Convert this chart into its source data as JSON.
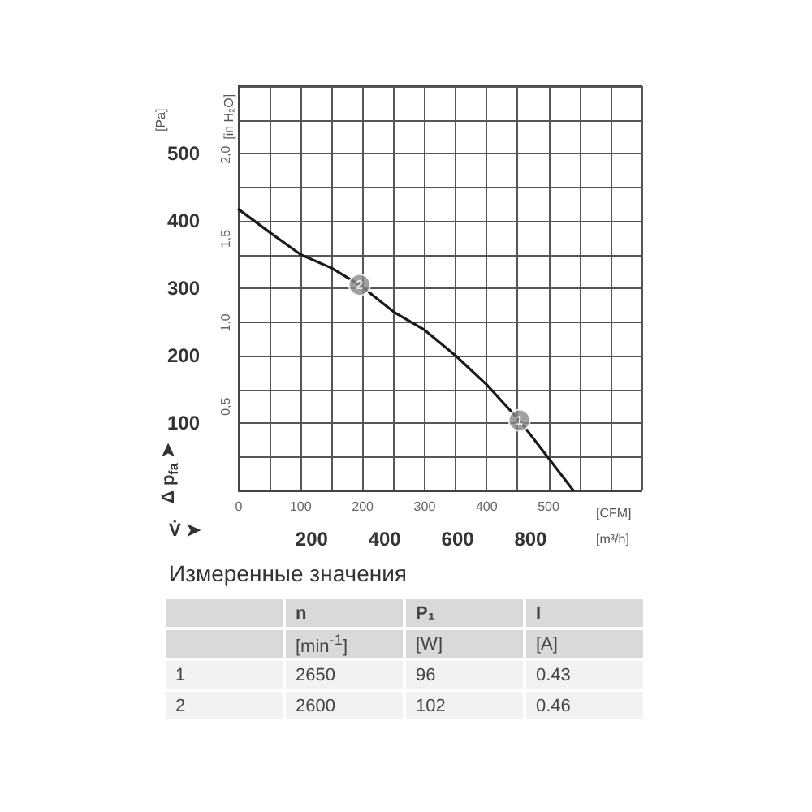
{
  "chart_data": [
    {
      "type": "line",
      "xlabel": "[CFM]",
      "ylabel": "[Pa]",
      "y2label": "[in H₂O]",
      "x2label": "[m³/h]",
      "annotations": [
        "Δ p$_{fa}$ ➤",
        "V̇ ➤",
        {
          "text": "1",
          "x": 453,
          "y": 104
        },
        {
          "text": "2",
          "x": 195,
          "y": 305
        }
      ],
      "series": [
        {
          "color": "#1a1a1a",
          "x": [
            0,
            50,
            100,
            150,
            195,
            250,
            300,
            350,
            400,
            453,
            500,
            540
          ],
          "values": [
            417,
            383,
            350,
            330,
            305,
            265,
            238,
            200,
            157,
            104,
            48,
            0
          ]
        }
      ],
      "xlim": [
        0,
        650
      ],
      "xticks": [
        0,
        {
          "value": 50,
          "label": null
        },
        100,
        {
          "value": 150,
          "label": null
        },
        200,
        {
          "value": 250,
          "label": null
        },
        300,
        {
          "value": 350,
          "label": null
        },
        400,
        {
          "value": 450,
          "label": null
        },
        500,
        {
          "value": 550,
          "label": null
        },
        {
          "value": 600,
          "label": null
        },
        {
          "value": 650,
          "label": null
        }
      ],
      "ylim": [
        0,
        600
      ],
      "yticks": [
        {
          "value": 0,
          "label": null
        },
        {
          "value": 50,
          "label": null
        },
        100,
        {
          "value": 150,
          "label": null
        },
        200,
        {
          "value": 250,
          "label": null
        },
        300,
        {
          "value": 350,
          "label": null
        },
        400,
        {
          "value": 450,
          "label": null
        },
        500,
        {
          "value": 550,
          "label": null
        },
        {
          "value": 600,
          "label": null
        }
      ],
      "x2lim": [
        0,
        1104
      ],
      "x2ticks": [
        200,
        400,
        600,
        800
      ],
      "y2lim": [
        0,
        2.41
      ],
      "y2ticks": [
        {
          "value": 0.5,
          "label": "0,5"
        },
        {
          "value": 1.0,
          "label": "1,0"
        },
        {
          "value": 1.5,
          "label": "1,5"
        },
        {
          "value": 2.0,
          "label": "2,0"
        }
      ],
      "grid": true,
      "marker": "none",
      "line_style": "solid"
    },
    {
      "type": "other",
      "title": "Измеренные значения",
      "categories": [
        null,
        null,
        "1",
        "2"
      ],
      "annotations": [
        "n",
        "P₁",
        "I",
        "[min$^{-1}$]",
        "[W]",
        "[A]",
        "2650",
        "96",
        "0.43",
        "2600",
        "102",
        "0.46"
      ]
    }
  ]
}
